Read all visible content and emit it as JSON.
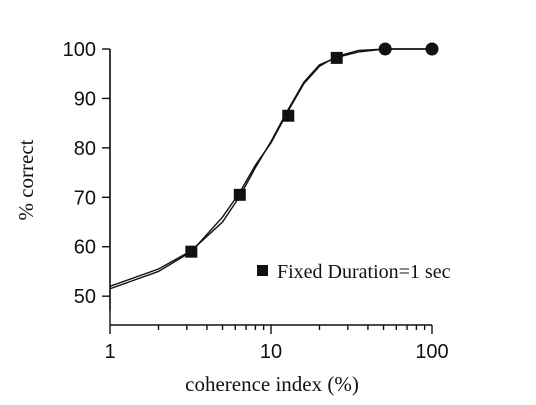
{
  "chart_data": {
    "type": "scatter",
    "title": "",
    "xlabel": "coherence index (%)",
    "ylabel": "% correct",
    "xscale": "log",
    "xlim": [
      1,
      100
    ],
    "ylim": [
      47,
      100
    ],
    "x_ticks": [
      1,
      10,
      100
    ],
    "x_tick_labels": [
      "1",
      "10",
      "100"
    ],
    "y_ticks": [
      50,
      60,
      70,
      80,
      90,
      100
    ],
    "y_tick_labels": [
      "50",
      "60",
      "70",
      "80",
      "90",
      "100"
    ],
    "grid": false,
    "legend_position": "bottom-right",
    "series": [
      {
        "name": "Fixed Duration=1 sec",
        "marker": "square",
        "x": [
          3.2,
          6.4,
          12.8,
          25.6
        ],
        "y": [
          59,
          70.5,
          86.5,
          98.2
        ]
      },
      {
        "marker": "circle",
        "x": [
          51.2,
          100
        ],
        "y": [
          100,
          100
        ]
      }
    ],
    "fit_curves": [
      {
        "x": [
          1,
          2,
          3.2,
          5,
          6.4,
          8,
          10,
          12.8,
          16,
          20,
          25.6,
          35,
          51.2,
          100
        ],
        "y": [
          51.5,
          55,
          59,
          66,
          71,
          76.5,
          81,
          87.5,
          93,
          96.5,
          98.5,
          99.7,
          100,
          100
        ]
      },
      {
        "x": [
          1,
          2,
          3.2,
          5,
          6.4,
          8,
          10,
          12.8,
          16,
          20,
          25.6,
          35,
          51.2,
          100
        ],
        "y": [
          52,
          55.5,
          59.2,
          65,
          70.2,
          76,
          81.3,
          87.8,
          93.3,
          96.8,
          98.3,
          99.4,
          100,
          100
        ]
      }
    ]
  }
}
